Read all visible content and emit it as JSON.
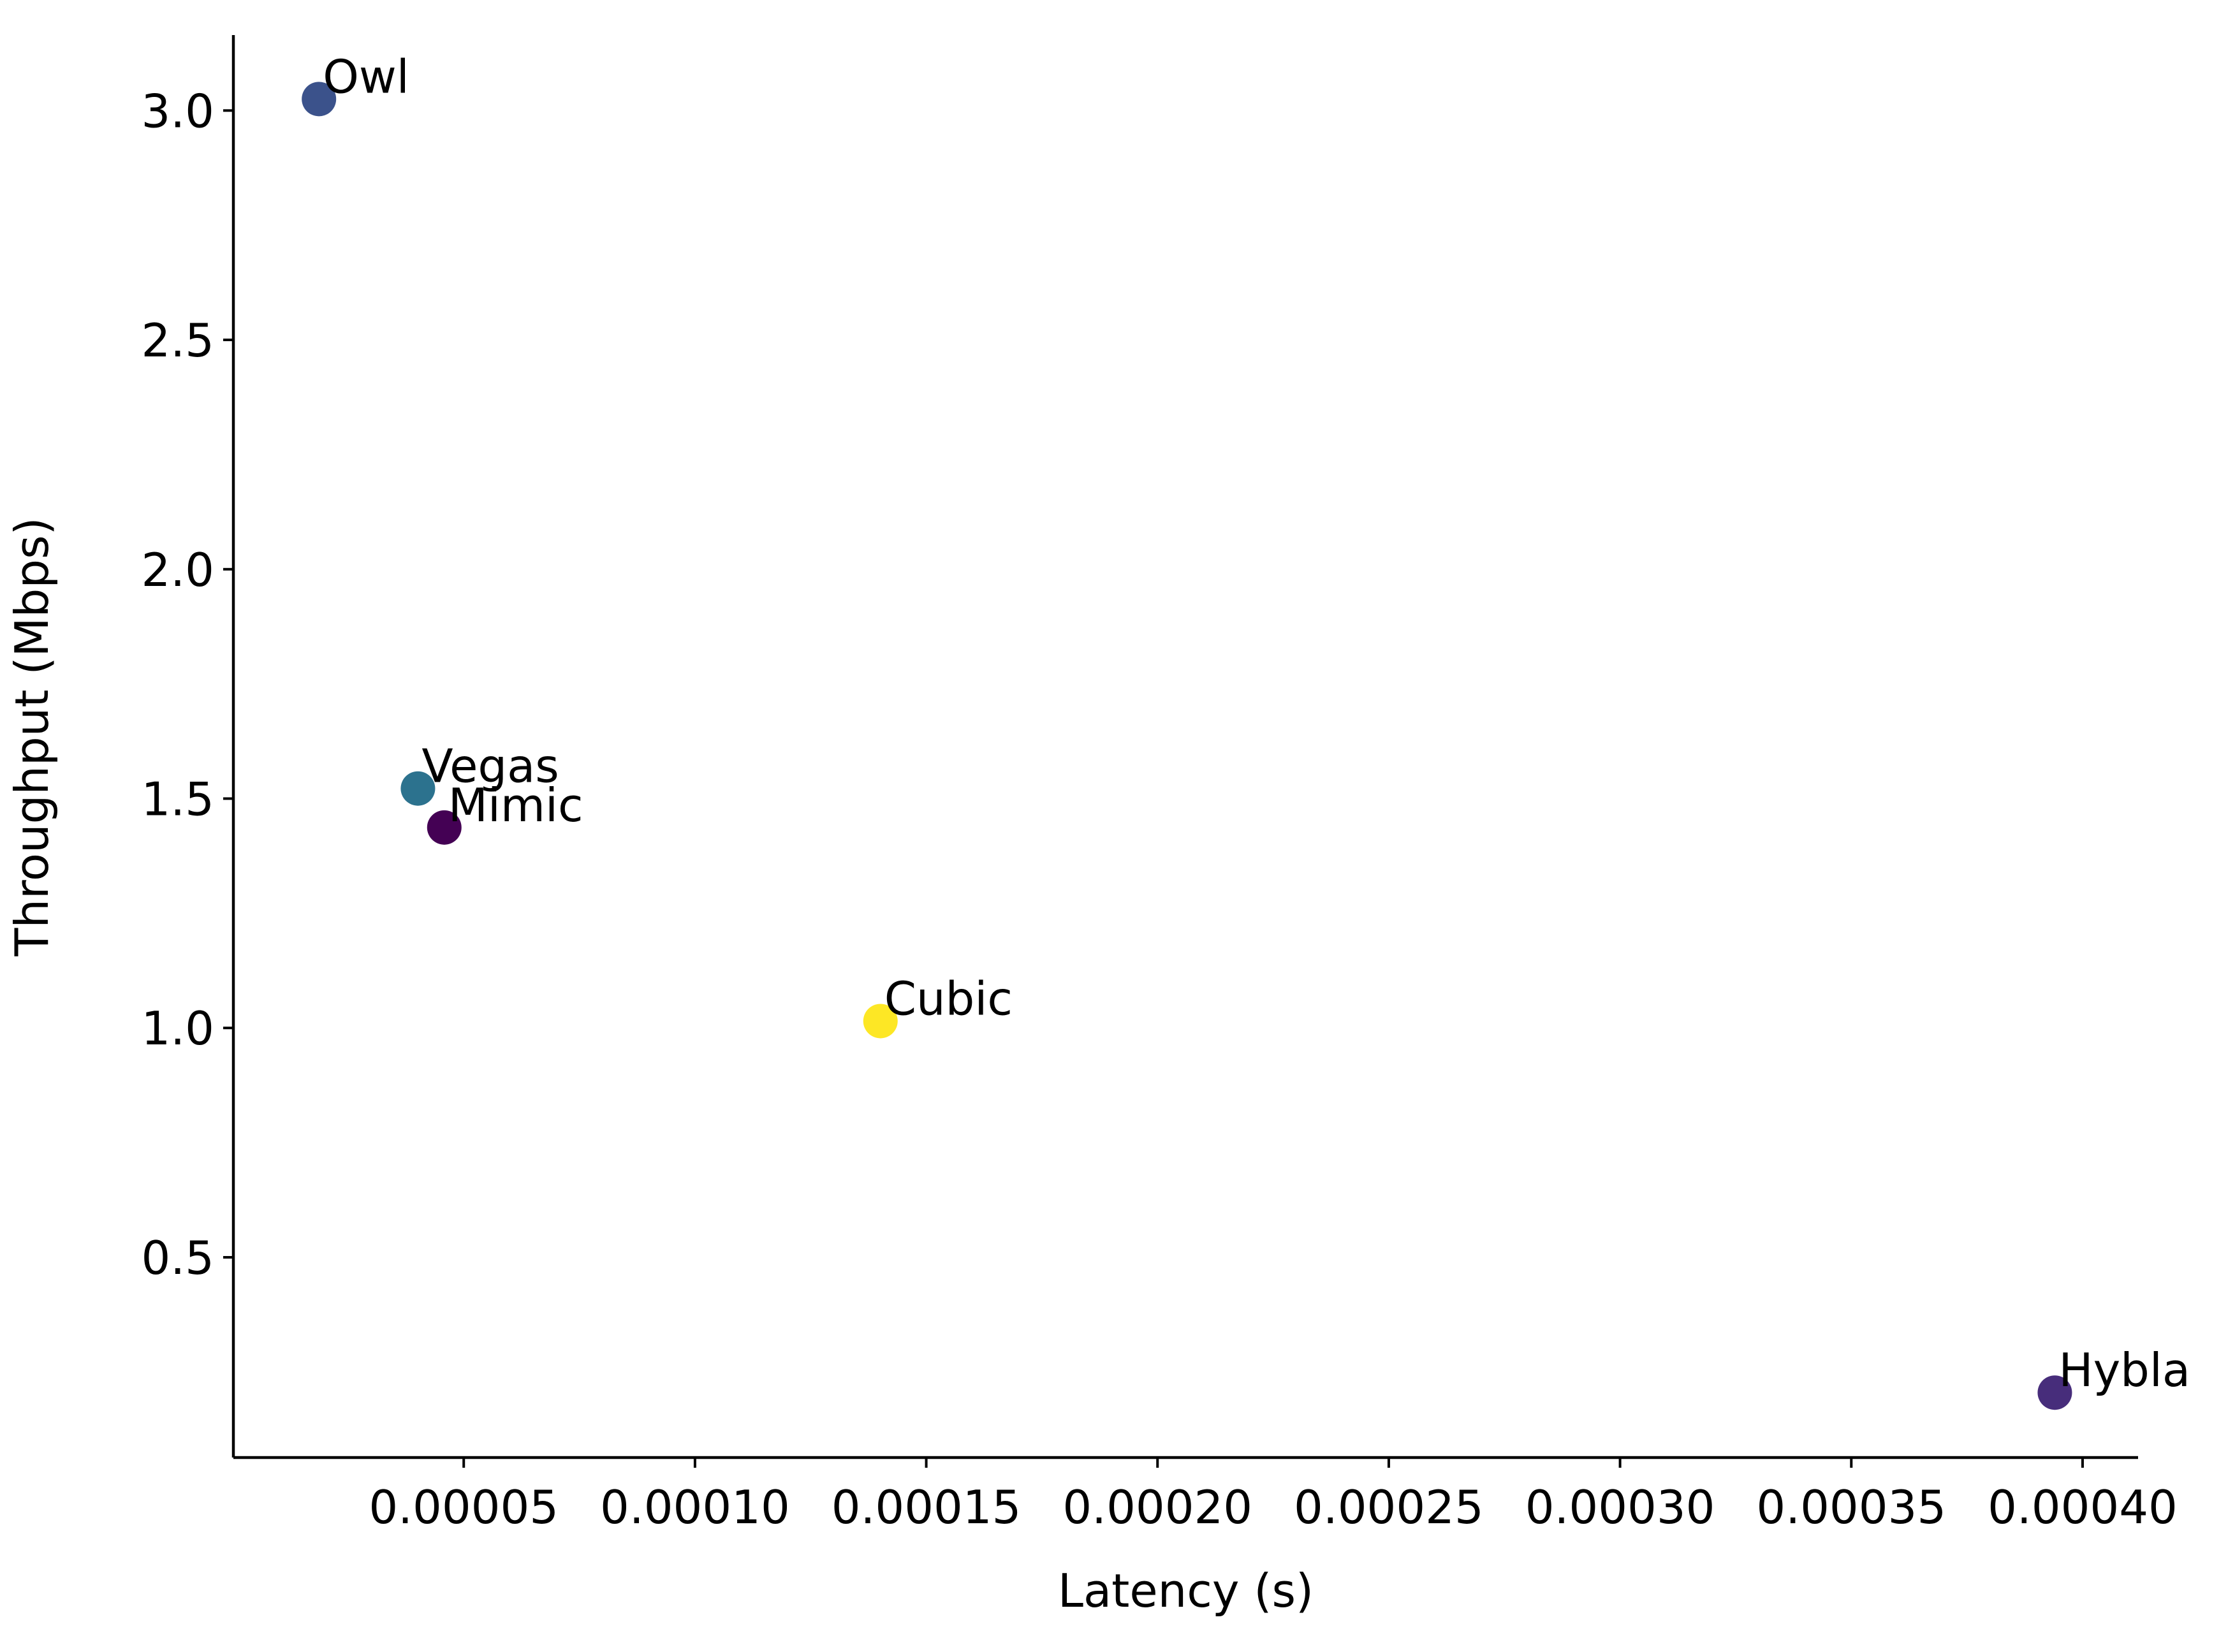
{
  "chart_data": {
    "type": "scatter",
    "title": "",
    "xlabel": "Latency (s)",
    "ylabel": "Throughput (Mbps)",
    "xlim": [
      2e-07,
      0.000412
    ],
    "ylim": [
      0.0635,
      3.1645
    ],
    "grid": false,
    "legend": "none",
    "x_ticks": [
      5e-05,
      0.0001,
      0.00015,
      0.0002,
      0.00025,
      0.0003,
      0.00035,
      0.0004
    ],
    "x_tick_labels": [
      "0.00005",
      "0.00010",
      "0.00015",
      "0.00020",
      "0.00025",
      "0.00030",
      "0.00035",
      "0.00040"
    ],
    "y_ticks": [
      0.5,
      1.0,
      1.5,
      2.0,
      2.5,
      3.0
    ],
    "y_tick_labels": [
      "0.5",
      "1.0",
      "1.5",
      "2.0",
      "2.5",
      "3.0"
    ],
    "points": [
      {
        "label": "Owl",
        "x": 1.87e-05,
        "y": 3.025,
        "color": "#3b528b"
      },
      {
        "label": "Vegas",
        "x": 4.01e-05,
        "y": 1.522,
        "color": "#2c728e"
      },
      {
        "label": "Mimic",
        "x": 4.58e-05,
        "y": 1.437,
        "color": "#440154"
      },
      {
        "label": "Cubic",
        "x": 0.0001401,
        "y": 1.015,
        "color": "#fde725"
      },
      {
        "label": "Hybla",
        "x": 0.000394,
        "y": 0.205,
        "color": "#472d7b"
      }
    ]
  }
}
